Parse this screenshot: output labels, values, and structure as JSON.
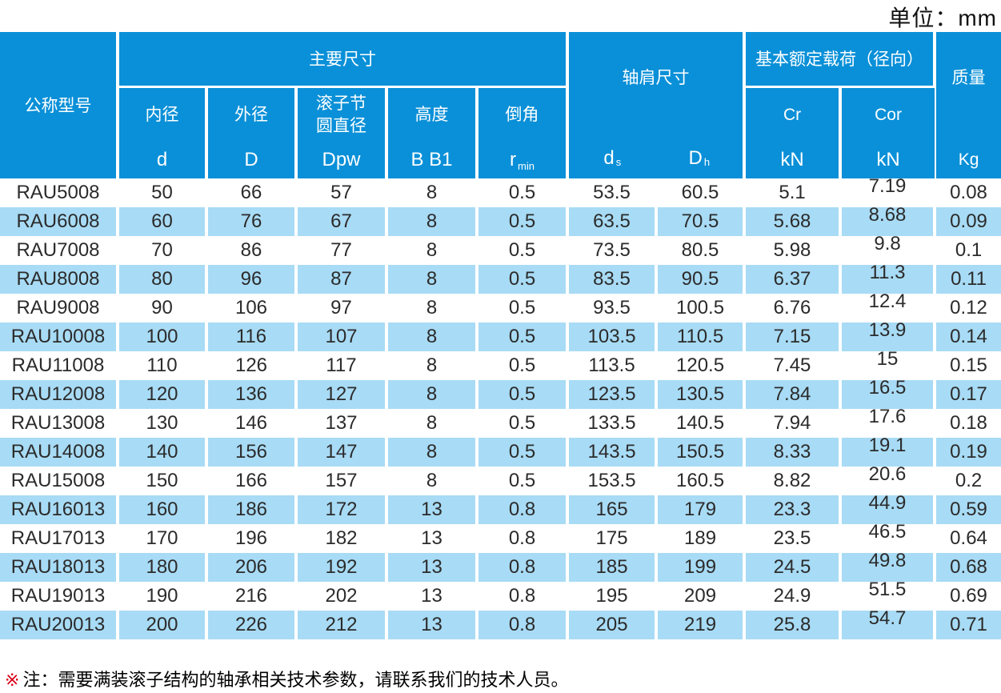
{
  "unit_label": "单位：mm",
  "header": {
    "model": "公称型号",
    "main_dims": "主要尺寸",
    "sub": [
      {
        "name": "内径",
        "sym": "d"
      },
      {
        "name": "外径",
        "sym": "D"
      },
      {
        "name_lines": [
          "滚子节",
          "圆直径"
        ],
        "sym": "Dpw"
      },
      {
        "name": "高度",
        "sym": "B  B1"
      },
      {
        "name": "倒角",
        "sym_main": "r",
        "sym_sub": "min"
      }
    ],
    "shoulder": {
      "label": "轴肩尺寸",
      "ds_main": "d",
      "ds_sub": "s",
      "dh_main": "D",
      "dh_sub": "h"
    },
    "load": {
      "label": "基本额定载荷（径向）",
      "cr": "Cr",
      "cor": "Cor",
      "unit": "kN"
    },
    "mass": {
      "label": "质量",
      "unit": "Kg"
    }
  },
  "rows": [
    {
      "model": "RAU5008",
      "d": "50",
      "D": "66",
      "Dpw": "57",
      "B": "8",
      "r": "0.5",
      "ds": "53.5",
      "Dh": "60.5",
      "Cr": "5.1",
      "Cor": "7.19",
      "kg": "0.08"
    },
    {
      "model": "RAU6008",
      "d": "60",
      "D": "76",
      "Dpw": "67",
      "B": "8",
      "r": "0.5",
      "ds": "63.5",
      "Dh": "70.5",
      "Cr": "5.68",
      "Cor": "8.68",
      "kg": "0.09"
    },
    {
      "model": "RAU7008",
      "d": "70",
      "D": "86",
      "Dpw": "77",
      "B": "8",
      "r": "0.5",
      "ds": "73.5",
      "Dh": "80.5",
      "Cr": "5.98",
      "Cor": "9.8",
      "kg": "0.1"
    },
    {
      "model": "RAU8008",
      "d": "80",
      "D": "96",
      "Dpw": "87",
      "B": "8",
      "r": "0.5",
      "ds": "83.5",
      "Dh": "90.5",
      "Cr": "6.37",
      "Cor": "11.3",
      "kg": "0.11"
    },
    {
      "model": "RAU9008",
      "d": "90",
      "D": "106",
      "Dpw": "97",
      "B": "8",
      "r": "0.5",
      "ds": "93.5",
      "Dh": "100.5",
      "Cr": "6.76",
      "Cor": "12.4",
      "kg": "0.12"
    },
    {
      "model": "RAU10008",
      "d": "100",
      "D": "116",
      "Dpw": "107",
      "B": "8",
      "r": "0.5",
      "ds": "103.5",
      "Dh": "110.5",
      "Cr": "7.15",
      "Cor": "13.9",
      "kg": "0.14"
    },
    {
      "model": "RAU11008",
      "d": "110",
      "D": "126",
      "Dpw": "117",
      "B": "8",
      "r": "0.5",
      "ds": "113.5",
      "Dh": "120.5",
      "Cr": "7.45",
      "Cor": "15",
      "kg": "0.15"
    },
    {
      "model": "RAU12008",
      "d": "120",
      "D": "136",
      "Dpw": "127",
      "B": "8",
      "r": "0.5",
      "ds": "123.5",
      "Dh": "130.5",
      "Cr": "7.84",
      "Cor": "16.5",
      "kg": "0.17"
    },
    {
      "model": "RAU13008",
      "d": "130",
      "D": "146",
      "Dpw": "137",
      "B": "8",
      "r": "0.5",
      "ds": "133.5",
      "Dh": "140.5",
      "Cr": "7.94",
      "Cor": "17.6",
      "kg": "0.18"
    },
    {
      "model": "RAU14008",
      "d": "140",
      "D": "156",
      "Dpw": "147",
      "B": "8",
      "r": "0.5",
      "ds": "143.5",
      "Dh": "150.5",
      "Cr": "8.33",
      "Cor": "19.1",
      "kg": "0.19"
    },
    {
      "model": "RAU15008",
      "d": "150",
      "D": "166",
      "Dpw": "157",
      "B": "8",
      "r": "0.5",
      "ds": "153.5",
      "Dh": "160.5",
      "Cr": "8.82",
      "Cor": "20.6",
      "kg": "0.2"
    },
    {
      "model": "RAU16013",
      "d": "160",
      "D": "186",
      "Dpw": "172",
      "B": "13",
      "r": "0.8",
      "ds": "165",
      "Dh": "179",
      "Cr": "23.3",
      "Cor": "44.9",
      "kg": "0.59"
    },
    {
      "model": "RAU17013",
      "d": "170",
      "D": "196",
      "Dpw": "182",
      "B": "13",
      "r": "0.8",
      "ds": "175",
      "Dh": "189",
      "Cr": "23.5",
      "Cor": "46.5",
      "kg": "0.64"
    },
    {
      "model": "RAU18013",
      "d": "180",
      "D": "206",
      "Dpw": "192",
      "B": "13",
      "r": "0.8",
      "ds": "185",
      "Dh": "199",
      "Cr": "24.5",
      "Cor": "49.8",
      "kg": "0.68"
    },
    {
      "model": "RAU19013",
      "d": "190",
      "D": "216",
      "Dpw": "202",
      "B": "13",
      "r": "0.8",
      "ds": "195",
      "Dh": "209",
      "Cr": "24.9",
      "Cor": "51.5",
      "kg": "0.69"
    },
    {
      "model": "RAU20013",
      "d": "200",
      "D": "226",
      "Dpw": "212",
      "B": "13",
      "r": "0.8",
      "ds": "205",
      "Dh": "219",
      "Cr": "25.8",
      "Cor": "54.7",
      "kg": "0.71"
    }
  ],
  "note": {
    "marker": "※",
    "text": "注：需要满装滚子结构的轴承相关技术参数，请联系我们的技术人员。"
  },
  "colors": {
    "header_blue": "#0a90d8",
    "row_blue": "#a8dbf5",
    "note_red": "#d9001b"
  }
}
